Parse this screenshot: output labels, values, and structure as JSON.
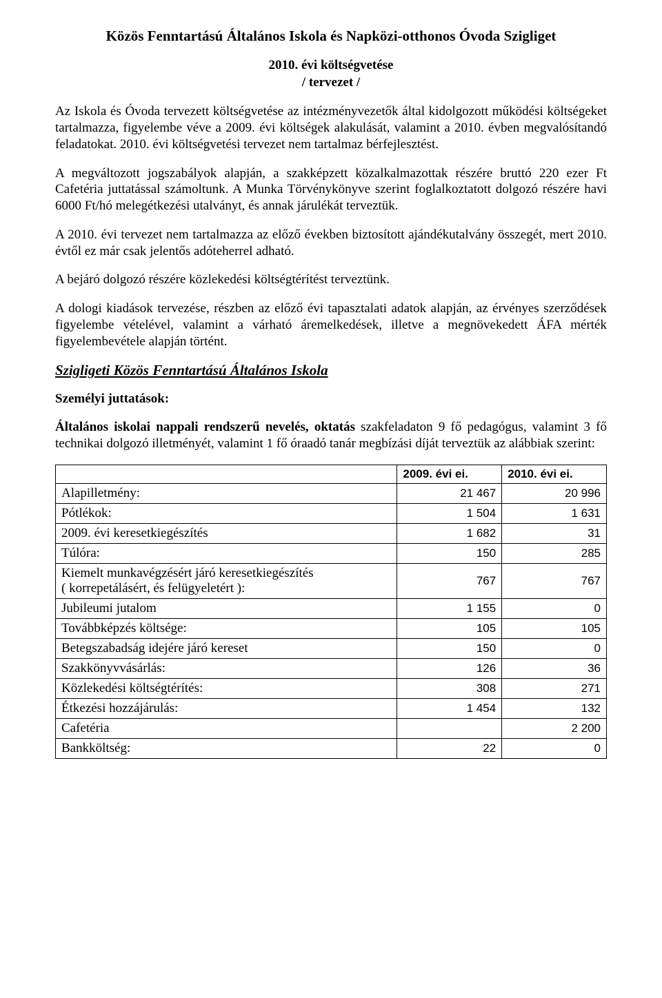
{
  "title": "Közös Fenntartású Általános Iskola és Napközi-otthonos Óvoda Szigliget",
  "subtitle_line1": "2010. évi költségvetése",
  "subtitle_line2": "/ tervezet /",
  "paragraphs": {
    "p1": "Az Iskola és Óvoda tervezett költségvetése az intézményvezetők által kidolgozott működési költségeket tartalmazza, figyelembe véve a 2009. évi költségek alakulását, valamint a 2010. évben megvalósítandó feladatokat. 2010. évi költségvetési tervezet nem tartalmaz bérfejlesztést.",
    "p2": "A megváltozott jogszabályok alapján, a szakképzett közalkalmazottak részére bruttó 220 ezer Ft Cafetéria juttatással számoltunk. A Munka Törvénykönyve szerint foglalkoztatott dolgozó részére havi 6000 Ft/hó melegétkezési utalványt, és annak járulékát terveztük.",
    "p3": "A 2010. évi tervezet nem tartalmazza az előző években biztosított ajándékutalvány összegét, mert 2010. évtől ez már csak jelentős adóteherrel adható.",
    "p4": "A bejáró dolgozó részére közlekedési költségtérítést terveztünk.",
    "p5": "A dologi kiadások tervezése, részben az előző évi tapasztalati adatok alapján, az érvényes szerződések figyelembe vételével, valamint a várható áremelkedések, illetve a megnövekedett ÁFA mérték figyelembevétele alapján történt."
  },
  "section_heading": "Szigligeti Közös Fenntartású Általános Iskola",
  "subheading": "Személyi juttatások:",
  "intro_bold": "Általános iskolai nappali rendszerű nevelés, oktatás",
  "intro_rest": " szakfeladaton 9 fő pedagógus, valamint 3 fő technikai dolgozó illetményét, valamint 1 fő óraadó tanár megbízási díját terveztük az alábbiak szerint:",
  "table": {
    "header": {
      "col1": "",
      "col2": "2009. évi ei.",
      "col3": "2010. évi ei."
    },
    "rows": [
      {
        "label": "Alapilletmény:",
        "v2009": "21 467",
        "v2010": "20 996"
      },
      {
        "label": "Pótlékok:",
        "v2009": "1 504",
        "v2010": "1 631"
      },
      {
        "label": "2009. évi keresetkiegészítés",
        "v2009": "1 682",
        "v2010": "31"
      },
      {
        "label": "Túlóra:",
        "v2009": "150",
        "v2010": "285"
      },
      {
        "label": "Kiemelt munkavégzésért járó keresetkiegészítés\n( korrepetálásért, és felügyeletért ):",
        "v2009": "767",
        "v2010": "767"
      },
      {
        "label": "Jubileumi jutalom",
        "v2009": "1 155",
        "v2010": "0"
      },
      {
        "label": "Továbbképzés költsége:",
        "v2009": "105",
        "v2010": "105"
      },
      {
        "label": "Betegszabadság idejére járó kereset",
        "v2009": "150",
        "v2010": "0"
      },
      {
        "label": "Szakkönyvvásárlás:",
        "v2009": "126",
        "v2010": "36"
      },
      {
        "label": "Közlekedési költségtérítés:",
        "v2009": "308",
        "v2010": "271"
      },
      {
        "label": "Étkezési hozzájárulás:",
        "v2009": "1 454",
        "v2010": "132"
      },
      {
        "label": "Cafetéria",
        "v2009": "",
        "v2010": "2 200"
      },
      {
        "label": "Bankköltség:",
        "v2009": "22",
        "v2010": "0"
      }
    ]
  }
}
